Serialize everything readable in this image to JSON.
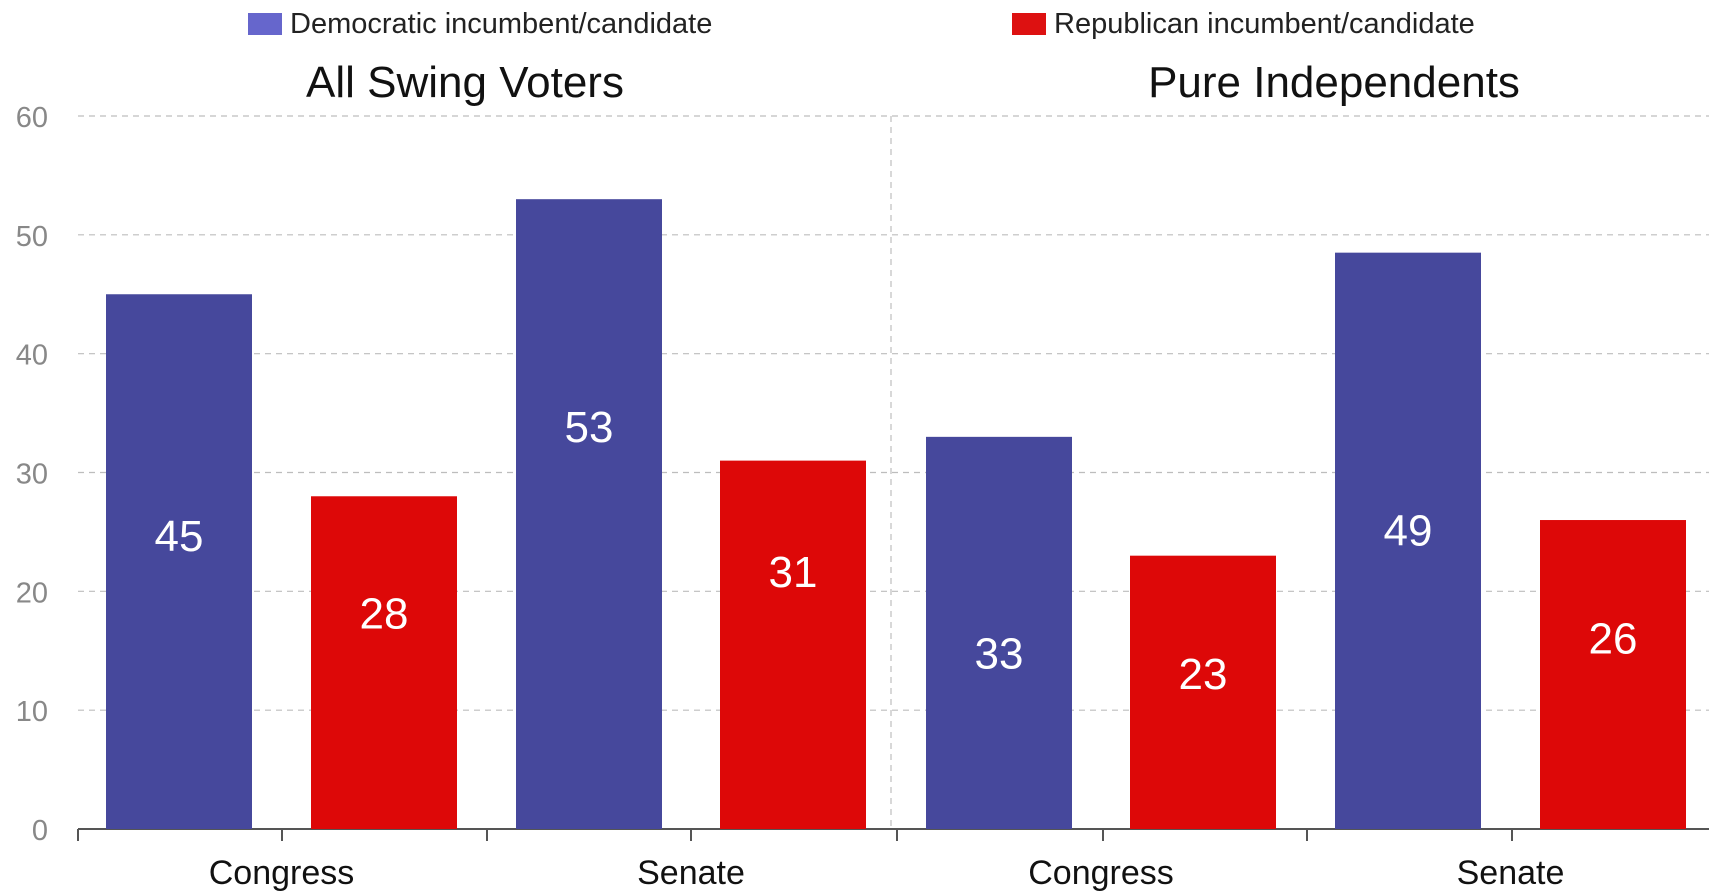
{
  "legend": [
    {
      "label": "Democratic incumbent/candidate",
      "color": "#6666cc"
    },
    {
      "label": "Republican incumbent/candidate",
      "color": "#dd1111"
    }
  ],
  "chart_data": {
    "type": "bar",
    "panels": [
      {
        "title": "All Swing Voters",
        "categories": [
          "Congress",
          "Senate"
        ],
        "series": [
          {
            "name": "Democratic incumbent/candidate",
            "values": [
              45,
              53
            ],
            "labels": [
              "45",
              "53"
            ]
          },
          {
            "name": "Republican incumbent/candidate",
            "values": [
              28,
              31
            ],
            "labels": [
              "28",
              "31"
            ]
          }
        ]
      },
      {
        "title": "Pure Independents",
        "categories": [
          "Congress",
          "Senate"
        ],
        "series": [
          {
            "name": "Democratic incumbent/candidate",
            "values": [
              33,
              48.5
            ],
            "labels": [
              "33",
              "49"
            ]
          },
          {
            "name": "Republican incumbent/candidate",
            "values": [
              23,
              26
            ],
            "labels": [
              "23",
              "26"
            ]
          }
        ]
      }
    ],
    "ylim": [
      0,
      60
    ],
    "yticks": [
      0,
      10,
      20,
      30,
      40,
      50,
      60
    ],
    "grid": true,
    "bar_colors": {
      "Democratic incumbent/candidate": "#46489c",
      "Republican incumbent/candidate": "#dd0808"
    },
    "legend_position": "top"
  }
}
